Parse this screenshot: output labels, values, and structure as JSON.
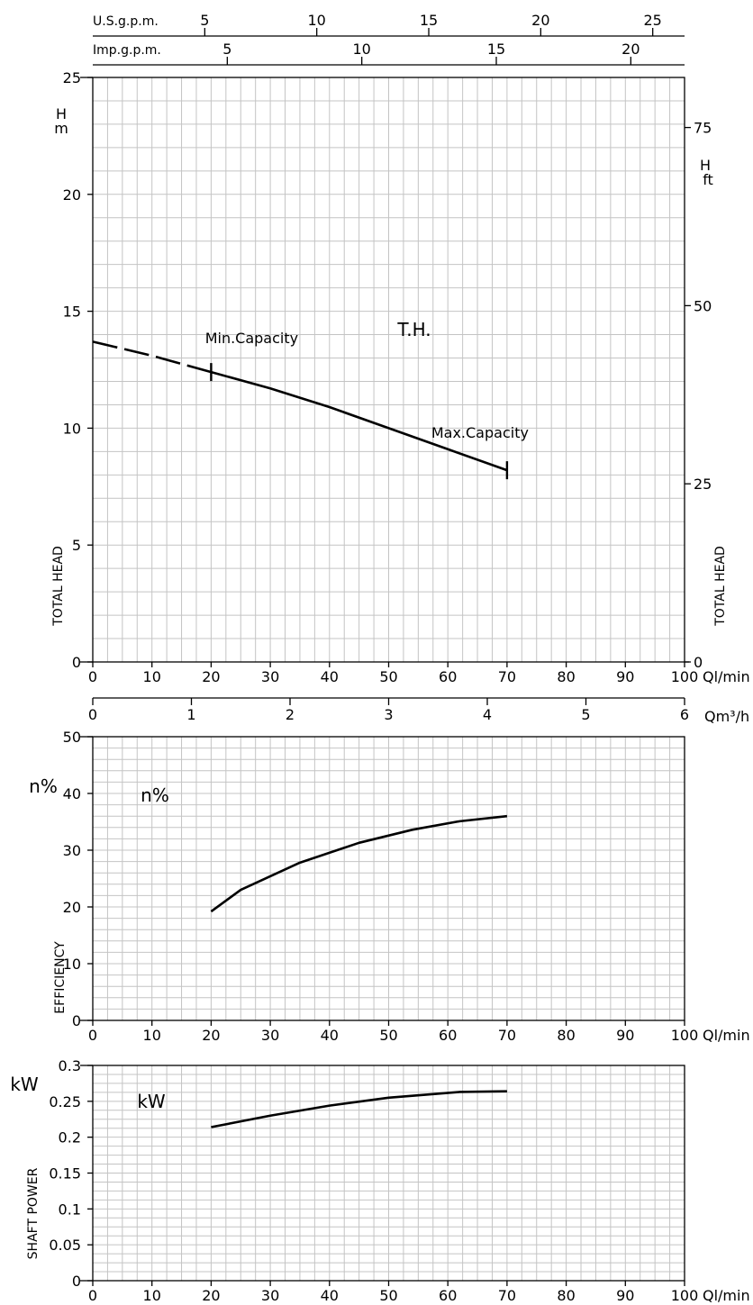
{
  "chart_data": [
    {
      "id": "head",
      "type": "line",
      "xlabel": "Ql/min",
      "ylabel_left": "TOTAL HEAD",
      "ylabel_right": "TOTAL HEAD",
      "y_unit_left": [
        "H",
        "m"
      ],
      "y_unit_right": [
        "H",
        "ft"
      ],
      "xlim": [
        0,
        100
      ],
      "ylim": [
        0,
        25
      ],
      "x_ticks": [
        0,
        10,
        20,
        30,
        40,
        50,
        60,
        70,
        80,
        90,
        100
      ],
      "y_ticks": [
        0,
        5,
        10,
        15,
        20,
        25
      ],
      "right_ticks": [
        0,
        25,
        50,
        75
      ],
      "right_scale_ft_per_m": 3.281,
      "top_axes": [
        {
          "label": "U.S.g.p.m.",
          "ticks": [
            5,
            10,
            15,
            20,
            25
          ],
          "lpm_per_unit": 3.785
        },
        {
          "label": "Imp.g.p.m.",
          "ticks": [
            5,
            10,
            15,
            20
          ],
          "lpm_per_unit": 4.546
        }
      ],
      "secondary_x": {
        "label": "Qm³/h",
        "ticks": [
          0,
          1,
          2,
          3,
          4,
          5,
          6
        ],
        "lpm_per_unit": 16.667
      },
      "series": [
        {
          "name": "T.H.",
          "x": [
            0,
            10,
            20,
            30,
            40,
            50,
            60,
            70
          ],
          "y": [
            13.7,
            13.1,
            12.4,
            11.7,
            10.9,
            10.0,
            9.1,
            8.2
          ],
          "dashed_below_x": 20
        }
      ],
      "annotations": [
        {
          "text": "Min.Capacity",
          "x": 20,
          "y": 12.4
        },
        {
          "text": "Max.Capacity",
          "x": 70,
          "y": 8.2
        }
      ],
      "grid": true
    },
    {
      "id": "efficiency",
      "type": "line",
      "xlabel": "Ql/min",
      "ylabel": "EFFICIENCY",
      "y_unit": "n%",
      "xlim": [
        0,
        100
      ],
      "ylim": [
        0,
        50
      ],
      "x_ticks": [
        0,
        10,
        20,
        30,
        40,
        50,
        60,
        70,
        80,
        90,
        100
      ],
      "y_ticks": [
        0,
        10,
        20,
        30,
        40,
        50
      ],
      "series": [
        {
          "name": "n%",
          "x": [
            20,
            25,
            35,
            45,
            54,
            62,
            70
          ],
          "y": [
            19.2,
            23.0,
            27.8,
            31.3,
            33.6,
            35.1,
            36.0
          ]
        }
      ],
      "grid": true
    },
    {
      "id": "power",
      "type": "line",
      "xlabel": "Ql/min",
      "ylabel": "SHAFT POWER",
      "y_unit": "kW",
      "xlim": [
        0,
        100
      ],
      "ylim": [
        0,
        0.3
      ],
      "x_ticks": [
        0,
        10,
        20,
        30,
        40,
        50,
        60,
        70,
        80,
        90,
        100
      ],
      "y_ticks": [
        0,
        0.05,
        0.1,
        0.15,
        0.2,
        0.25,
        0.3
      ],
      "series": [
        {
          "name": "kW",
          "x": [
            20,
            30,
            40,
            50,
            62,
            70
          ],
          "y": [
            0.214,
            0.23,
            0.244,
            0.255,
            0.263,
            0.264
          ]
        }
      ],
      "grid": true
    }
  ]
}
